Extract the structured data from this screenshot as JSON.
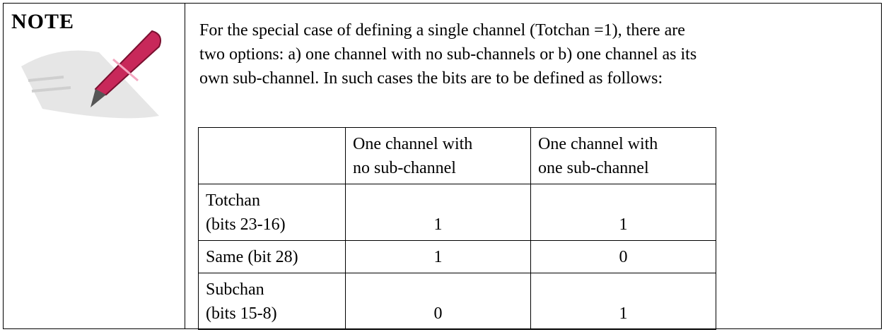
{
  "note": {
    "label": "NOTE",
    "paragraph": [
      "For the special case of defining a single channel (Totchan =1), there are",
      "two options: a) one channel with no sub-channels or b) one channel as its",
      "own sub-channel.  In such cases the bits are to be defined as follows:"
    ],
    "table": {
      "header": [
        [
          "One channel with",
          "no sub-channel"
        ],
        [
          "One channel with",
          "one sub-channel"
        ]
      ],
      "rows": [
        {
          "label": [
            "Totchan",
            "(bits 23-16)"
          ],
          "values": [
            1,
            1
          ]
        },
        {
          "label": [
            "Same (bit 28)"
          ],
          "values": [
            1,
            0
          ]
        },
        {
          "label": [
            "Subchan",
            "(bits 15-8)"
          ],
          "values": [
            0,
            1
          ]
        }
      ]
    }
  }
}
